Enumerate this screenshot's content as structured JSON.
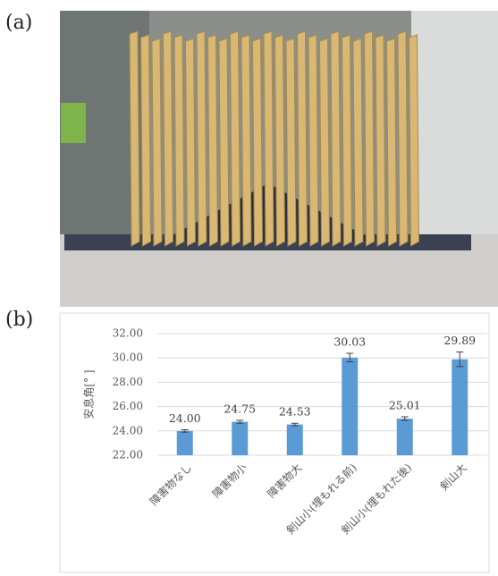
{
  "panel_labels": [
    "(a)",
    "(b)"
  ],
  "chart_data": {
    "type": "bar",
    "y_label": "安息角[° ]",
    "categories": [
      "障害物なし",
      "障害物小",
      "障害物大",
      "剣山小(埋もれる前)",
      "剣山小(埋もれた後)",
      "剣山大"
    ],
    "values": [
      24.0,
      24.75,
      24.53,
      30.03,
      25.01,
      29.89
    ],
    "value_labels": [
      "24.00",
      "24.75",
      "24.53",
      "30.03",
      "25.01",
      "29.89"
    ],
    "errors": [
      0.1,
      0.12,
      0.1,
      0.35,
      0.15,
      0.6
    ],
    "color": "#5b9bd5",
    "ylim": [
      22,
      32
    ],
    "yticks": [
      {
        "value": 22,
        "label": "22.00"
      },
      {
        "value": 24,
        "label": "24.00"
      },
      {
        "value": 26,
        "label": "26.00"
      },
      {
        "value": 28,
        "label": "28.00"
      },
      {
        "value": 30,
        "label": "30.00"
      },
      {
        "value": 32,
        "label": "32.00"
      }
    ],
    "grid": true
  }
}
